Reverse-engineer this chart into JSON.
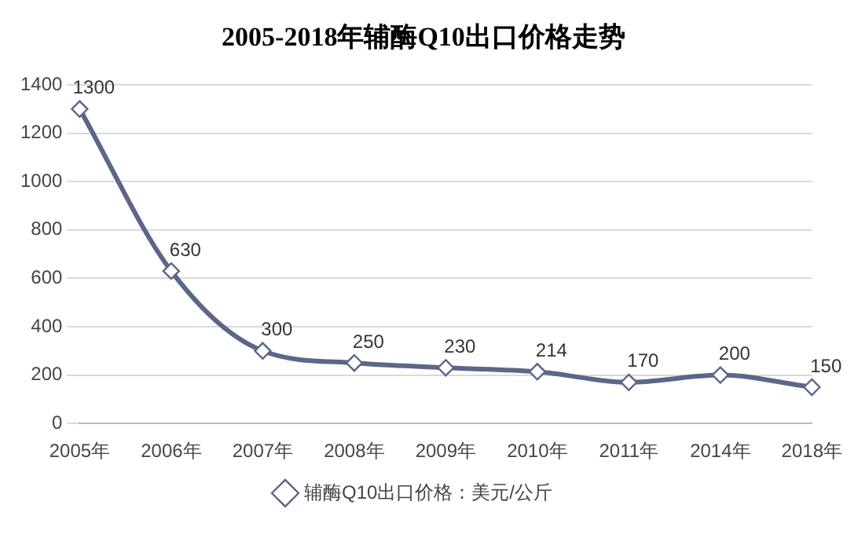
{
  "chart_data": {
    "type": "line",
    "title": "2005-2018年辅酶Q10出口价格走势",
    "categories": [
      "2005年",
      "2006年",
      "2007年",
      "2008年",
      "2009年",
      "2010年",
      "2011年",
      "2014年",
      "2018年"
    ],
    "series": [
      {
        "name": "辅酶Q10出口价格：美元/公斤",
        "color": "#5b6788",
        "values": [
          1300,
          630,
          300,
          250,
          230,
          214,
          170,
          200,
          150
        ]
      }
    ],
    "ylim": [
      0,
      1400
    ],
    "yticks": [
      0,
      200,
      400,
      600,
      800,
      1000,
      1200,
      1400
    ],
    "grid": "y",
    "legend": "bottom",
    "marker": "diamond",
    "line_style": "solid",
    "data_labels": true
  }
}
